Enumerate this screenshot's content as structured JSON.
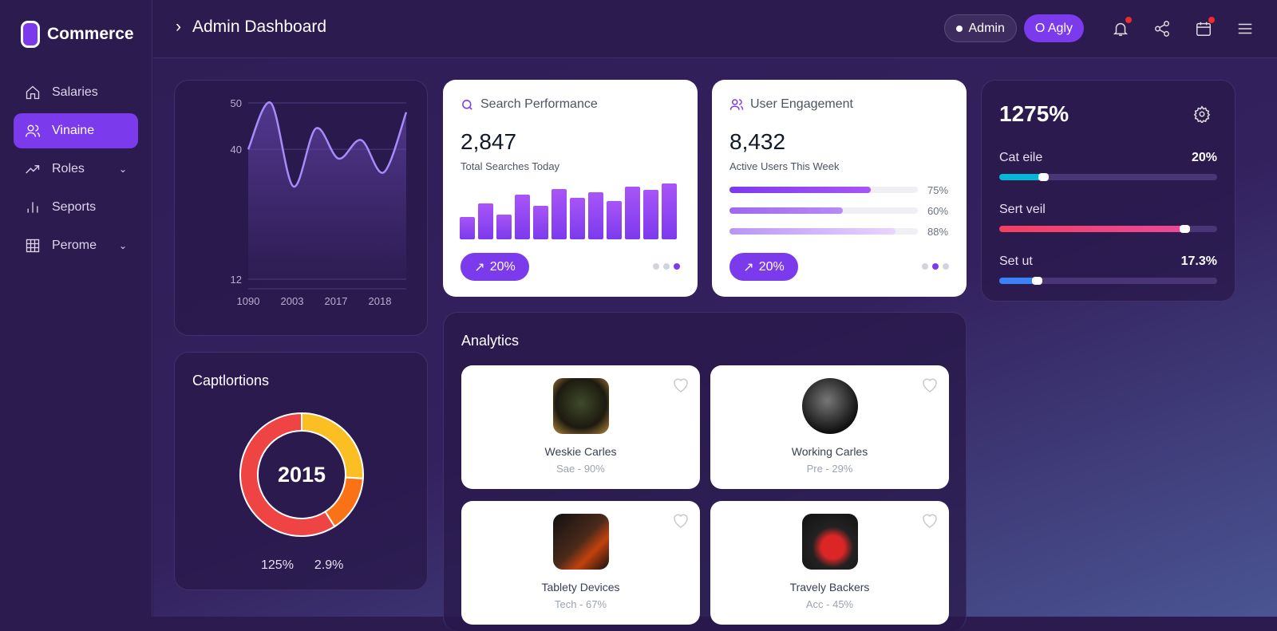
{
  "brand": {
    "name": "Commerce"
  },
  "sidebar": {
    "items": [
      {
        "label": "Salaries",
        "icon": "home-icon"
      },
      {
        "label": "Vinaine",
        "icon": "users-icon",
        "active": true
      },
      {
        "label": "Roles",
        "icon": "trending-icon",
        "expandable": true
      },
      {
        "label": "Seports",
        "icon": "bar-chart-icon"
      },
      {
        "label": "Perome",
        "icon": "grid-icon",
        "expandable": true
      }
    ]
  },
  "header": {
    "title": "Admin Dashboard",
    "admin_label": "Admin",
    "user_label": "O Agly"
  },
  "line_chart": {
    "chart_data": {
      "type": "area",
      "x_ticks": [
        "1090",
        "2003",
        "2017",
        "2018"
      ],
      "y_ticks": [
        "12",
        "40",
        "50"
      ],
      "ylim": [
        12,
        50
      ],
      "values": [
        40,
        50,
        32,
        44.5,
        38,
        42,
        35,
        48
      ],
      "grid": true
    }
  },
  "donut": {
    "title": "Captlortions",
    "center": "2015",
    "chart_data": {
      "type": "pie",
      "values": [
        26,
        15,
        59
      ],
      "colors": [
        "#fbbf24",
        "#f97316",
        "#ef4444"
      ]
    },
    "legend": [
      "125%",
      "2.9%"
    ]
  },
  "search": {
    "title": "Search Performance",
    "value": "2,847",
    "subtitle": "Total Searches Today",
    "trend": "20%",
    "bars": [
      28,
      45,
      31,
      56,
      42,
      63,
      52,
      59,
      48,
      66,
      62,
      70
    ],
    "active_dot": 2
  },
  "engagement": {
    "title": "User Engagement",
    "value": "8,432",
    "subtitle": "Active Users This Week",
    "trend": "20%",
    "progress": [
      {
        "value": 75,
        "label": "75%"
      },
      {
        "value": 60,
        "label": "60%"
      },
      {
        "value": 88,
        "label": "88%"
      }
    ],
    "active_dot": 1
  },
  "stats": {
    "total": "1275%",
    "items": [
      {
        "label": "Cat eile",
        "value": "20%",
        "fill": 20,
        "color": "#06b6d4"
      },
      {
        "label": "Sert veil",
        "value": "",
        "fill": 85,
        "color": "#f43f5e"
      },
      {
        "label": "Set ut",
        "value": "17.3%",
        "fill": 17.3,
        "color": "#3b82f6"
      }
    ]
  },
  "analytics": {
    "title": "Analytics",
    "products": [
      {
        "name": "Weskie Carles",
        "meta": "Sae - 90%"
      },
      {
        "name": "Working Carles",
        "meta": "Pre - 29%"
      },
      {
        "name": "Tablety Devices",
        "meta": "Tech - 67%"
      },
      {
        "name": "Travely Backers",
        "meta": "Acc - 45%"
      }
    ]
  }
}
